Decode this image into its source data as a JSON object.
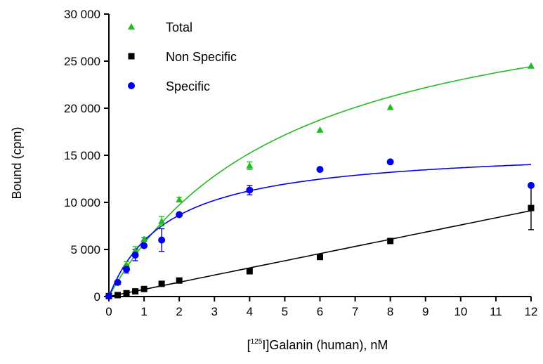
{
  "chart_data": {
    "type": "scatter",
    "xlabel": {
      "prefix": "[",
      "superscript": "125",
      "suffix": "I]Galanin (human), nM"
    },
    "ylabel": "Bound (cpm)",
    "xlim": [
      0,
      12
    ],
    "ylim": [
      0,
      30000
    ],
    "xticks": [
      0,
      1,
      2,
      3,
      4,
      5,
      6,
      7,
      8,
      9,
      10,
      11,
      12
    ],
    "xtick_labels": [
      "0",
      "1",
      "2",
      "3",
      "4",
      "5",
      "6",
      "7",
      "8",
      "9",
      "10",
      "11",
      "12"
    ],
    "yticks": [
      0,
      5000,
      10000,
      15000,
      20000,
      25000,
      30000
    ],
    "ytick_labels": [
      "0",
      "5 000",
      "10 000",
      "15 000",
      "20 000",
      "25 000",
      "30 000"
    ],
    "grid": false,
    "legend_position": "top-left",
    "series": [
      {
        "name": "Total",
        "color": "#22bb22",
        "marker": "triangle",
        "x": [
          0,
          0.25,
          0.5,
          0.75,
          1,
          1.5,
          2,
          4,
          6,
          8,
          12
        ],
        "y": [
          100,
          1500,
          3400,
          4900,
          6100,
          8000,
          10300,
          13900,
          17700,
          20100,
          24500
        ],
        "err": [
          0,
          0,
          300,
          400,
          200,
          500,
          250,
          400,
          0,
          0,
          0
        ],
        "fit": "hyperbola",
        "fit_params": {
          "bmax": 35000,
          "kd": 5.2
        }
      },
      {
        "name": "Non Specific",
        "color": "#000000",
        "marker": "square",
        "x": [
          0,
          0.25,
          0.5,
          0.75,
          1,
          1.5,
          2,
          4,
          6,
          8,
          12
        ],
        "y": [
          50,
          150,
          350,
          550,
          800,
          1350,
          1700,
          2700,
          4200,
          5900,
          9400
        ],
        "err": [
          0,
          0,
          0,
          0,
          0,
          0,
          0,
          300,
          0,
          0,
          2300
        ],
        "fit": "linear",
        "fit_params": {
          "slope": 760,
          "intercept": 0
        }
      },
      {
        "name": "Specific",
        "color": "#0000ee",
        "marker": "circle",
        "x": [
          0,
          0.25,
          0.5,
          0.75,
          1,
          1.5,
          2,
          4,
          6,
          8,
          12
        ],
        "y": [
          50,
          1500,
          2900,
          4400,
          5400,
          6000,
          8700,
          11300,
          13500,
          14300,
          11800
        ],
        "err": [
          0,
          0,
          400,
          600,
          0,
          1200,
          0,
          500,
          0,
          0,
          0
        ],
        "fit": "hyperbola",
        "fit_params": {
          "bmax": 16000,
          "kd": 1.7
        }
      }
    ]
  }
}
